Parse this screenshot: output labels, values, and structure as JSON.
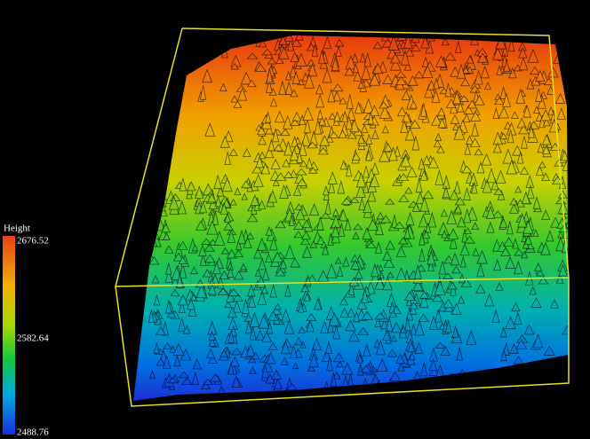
{
  "legend": {
    "title": "Height",
    "max": "2676.52",
    "mid": "2582.64",
    "min": "2488.76"
  }
}
